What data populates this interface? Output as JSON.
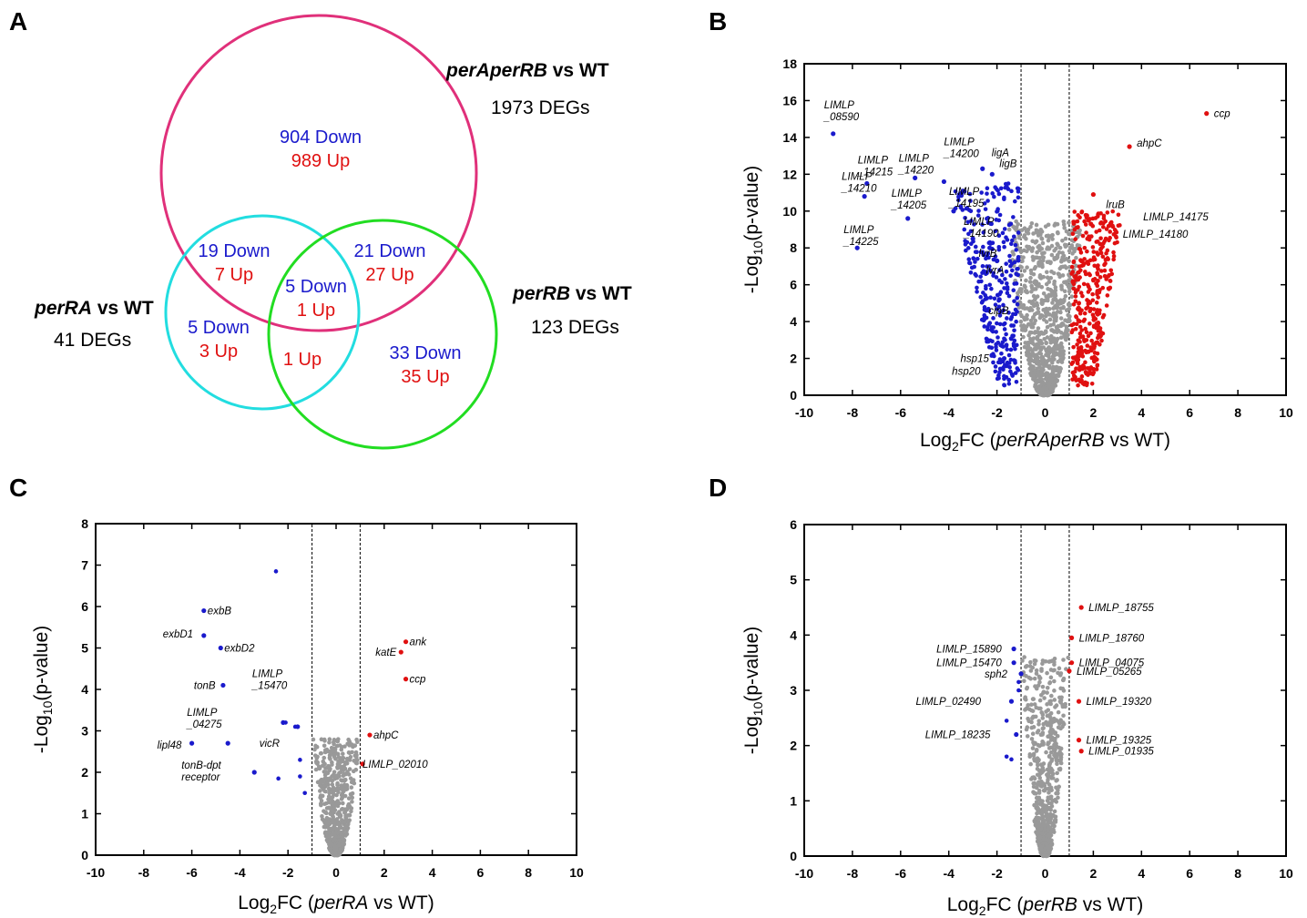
{
  "panel_labels": [
    "A",
    "B",
    "C",
    "D"
  ],
  "colors": {
    "down": "#1a1acc",
    "up": "#e01010",
    "ns": "#999999",
    "circle_ab": "#e0307a",
    "circle_a": "#22dde0",
    "circle_b": "#22dd22",
    "down_text": "#1a1acc",
    "up_text": "#e01010"
  },
  "venn": {
    "sets": [
      {
        "name_italic": "perAperRB",
        "name_rest": " vs WT",
        "count": "1973 DEGs"
      },
      {
        "name_italic": "perRA",
        "name_rest": " vs WT",
        "count": "41 DEGs"
      },
      {
        "name_italic": "perRB",
        "name_rest": " vs WT",
        "count": "123 DEGs"
      }
    ],
    "regions": [
      {
        "down": "904 Down",
        "up": "989 Up"
      },
      {
        "down": "19 Down",
        "up": "7 Up"
      },
      {
        "down": "21 Down",
        "up": "27 Up"
      },
      {
        "down": "5 Down",
        "up": "1 Up"
      },
      {
        "down": "5 Down",
        "up": "3 Up"
      },
      {
        "down": "",
        "up": "1 Up"
      },
      {
        "down": "33 Down",
        "up": "35 Up"
      }
    ]
  },
  "chart_data": [
    {
      "type": "scatter",
      "panel": "B",
      "title": "",
      "xlabel_pre": "Log",
      "xlabel_sub": "2",
      "xlabel_mid": "FC (",
      "xlabel_italic": "perRAperRB",
      "xlabel_post": " vs WT)",
      "ylabel_pre": "-Log",
      "ylabel_sub": "10",
      "ylabel_post": "(p-value)",
      "xlim": [
        -10,
        10
      ],
      "ylim": [
        0,
        18
      ],
      "xticks": [
        -10,
        -8,
        -6,
        -4,
        -2,
        0,
        2,
        4,
        6,
        8,
        10
      ],
      "yticks": [
        0,
        2,
        4,
        6,
        8,
        10,
        12,
        14,
        16,
        18
      ],
      "thresholds": [
        -1,
        1
      ],
      "labels": [
        {
          "lines": [
            "LIMLP",
            "_08590"
          ],
          "x": -8.8,
          "y": 14.2
        },
        {
          "lines": [
            "LIMLP",
            "_14215"
          ],
          "x": -7.4,
          "y": 11.5
        },
        {
          "lines": [
            "LIMLP",
            "_14210"
          ],
          "x": -7.5,
          "y": 10.8
        },
        {
          "lines": [
            "LIMLP",
            "_14225"
          ],
          "x": -7.8,
          "y": 8.0
        },
        {
          "lines": [
            "LIMLP",
            "_14220"
          ],
          "x": -5.4,
          "y": 11.8
        },
        {
          "lines": [
            "LIMLP",
            "_14205"
          ],
          "x": -5.7,
          "y": 9.6
        },
        {
          "lines": [
            "LIMLP",
            "_14200"
          ],
          "x": -4.2,
          "y": 11.6
        },
        {
          "lines": [
            "LIMLP",
            "_14195"
          ],
          "x": -3.8,
          "y": 10.0
        },
        {
          "lines": [
            "LIMLP",
            "_14190"
          ],
          "x": -3.0,
          "y": 8.5
        },
        {
          "lines": [
            "ligA"
          ],
          "x": -2.6,
          "y": 12.3
        },
        {
          "lines": [
            "ligB"
          ],
          "x": -2.2,
          "y": 12.0
        },
        {
          "lines": [
            "lvrB"
          ],
          "x": -2.3,
          "y": 8.0
        },
        {
          "lines": [
            "lvrA"
          ],
          "x": -2.0,
          "y": 7.3
        },
        {
          "lines": [
            "clpB"
          ],
          "x": -1.9,
          "y": 5.2
        },
        {
          "lines": [
            "hsp15"
          ],
          "x": -1.7,
          "y": 2.0
        },
        {
          "lines": [
            "hsp20"
          ],
          "x": -1.6,
          "y": 1.6
        },
        {
          "lines": [
            "ccp"
          ],
          "x": 6.7,
          "y": 15.3
        },
        {
          "lines": [
            "ahpC"
          ],
          "x": 3.5,
          "y": 13.5
        },
        {
          "lines": [
            "lruB"
          ],
          "x": 2.0,
          "y": 10.9
        },
        {
          "lines": [
            "LIMLP_14175"
          ],
          "x": 1.8,
          "y": 9.5
        },
        {
          "lines": [
            "LIMLP_14180"
          ],
          "x": 1.9,
          "y": 9.3
        }
      ]
    },
    {
      "type": "scatter",
      "panel": "C",
      "title": "",
      "xlabel_pre": "Log",
      "xlabel_sub": "2",
      "xlabel_mid": "FC (",
      "xlabel_italic": "perRA",
      "xlabel_post": " vs WT)",
      "ylabel_pre": "-Log",
      "ylabel_sub": "10",
      "ylabel_post": "(p-value)",
      "xlim": [
        -10,
        10
      ],
      "ylim": [
        0,
        8
      ],
      "xticks": [
        -10,
        -8,
        -6,
        -4,
        -2,
        0,
        2,
        4,
        6,
        8,
        10
      ],
      "yticks": [
        0,
        1,
        2,
        3,
        4,
        5,
        6,
        7,
        8
      ],
      "thresholds": [
        -1,
        1
      ],
      "labels": [
        {
          "lines": [
            "exbB"
          ],
          "x": -5.5,
          "y": 5.9
        },
        {
          "lines": [
            "exbD1"
          ],
          "x": -5.5,
          "y": 5.3
        },
        {
          "lines": [
            "exbD2"
          ],
          "x": -4.8,
          "y": 5.0
        },
        {
          "lines": [
            "tonB"
          ],
          "x": -4.7,
          "y": 4.1
        },
        {
          "lines": [
            "LIMLP",
            "_15470"
          ],
          "x": -2.2,
          "y": 3.2
        },
        {
          "lines": [
            "LIMLP",
            "_04275"
          ],
          "x": -4.5,
          "y": 2.7
        },
        {
          "lines": [
            "vicR"
          ],
          "x": -1.6,
          "y": 3.1
        },
        {
          "lines": [
            "lipl48"
          ],
          "x": -6.0,
          "y": 2.7
        },
        {
          "lines": [
            "tonB-dpt",
            "receptor"
          ],
          "x": -3.4,
          "y": 2.0
        },
        {
          "lines": [
            "ank"
          ],
          "x": 2.9,
          "y": 5.15
        },
        {
          "lines": [
            "katE"
          ],
          "x": 2.7,
          "y": 4.9
        },
        {
          "lines": [
            "ccp"
          ],
          "x": 2.9,
          "y": 4.25
        },
        {
          "lines": [
            "ahpC"
          ],
          "x": 1.4,
          "y": 2.9
        },
        {
          "lines": [
            "LIMLP_02010"
          ],
          "x": 1.1,
          "y": 2.2
        }
      ]
    },
    {
      "type": "scatter",
      "panel": "D",
      "title": "",
      "xlabel_pre": "Log",
      "xlabel_sub": "2",
      "xlabel_mid": "FC (",
      "xlabel_italic": "perRB",
      "xlabel_post": " vs WT)",
      "ylabel_pre": "-Log",
      "ylabel_sub": "10",
      "ylabel_post": "(p-value)",
      "xlim": [
        -10,
        10
      ],
      "ylim": [
        0,
        6
      ],
      "xticks": [
        -10,
        -8,
        -6,
        -4,
        -2,
        0,
        2,
        4,
        6,
        8,
        10
      ],
      "yticks": [
        0,
        1,
        2,
        3,
        4,
        5,
        6
      ],
      "thresholds": [
        -1,
        1
      ],
      "labels": [
        {
          "lines": [
            "LIMLP_15890"
          ],
          "x": -1.3,
          "y": 3.75
        },
        {
          "lines": [
            "LIMLP_15470"
          ],
          "x": -1.3,
          "y": 3.5
        },
        {
          "lines": [
            "sph2"
          ],
          "x": -1.0,
          "y": 3.3
        },
        {
          "lines": [
            "LIMLP_02490"
          ],
          "x": -1.4,
          "y": 2.8
        },
        {
          "lines": [
            "LIMLP_18235"
          ],
          "x": -1.2,
          "y": 2.2
        },
        {
          "lines": [
            "LIMLP_18755"
          ],
          "x": 1.5,
          "y": 4.5
        },
        {
          "lines": [
            "LIMLP_18760"
          ],
          "x": 1.1,
          "y": 3.95
        },
        {
          "lines": [
            "LIMLP_04075"
          ],
          "x": 1.1,
          "y": 3.5
        },
        {
          "lines": [
            "LIMLP_05265"
          ],
          "x": 1.0,
          "y": 3.35
        },
        {
          "lines": [
            "LIMLP_19320"
          ],
          "x": 1.4,
          "y": 2.8
        },
        {
          "lines": [
            "LIMLP_19325"
          ],
          "x": 1.4,
          "y": 2.1
        },
        {
          "lines": [
            "LIMLP_01935"
          ],
          "x": 1.5,
          "y": 1.9
        }
      ]
    }
  ]
}
